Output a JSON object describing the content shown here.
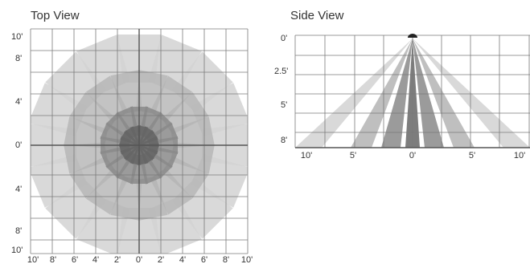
{
  "top_view": {
    "title": "Top View",
    "x_tick_labels": [
      "10'",
      "8'",
      "6'",
      "4'",
      "2'",
      "0'",
      "2'",
      "4'",
      "6'",
      "8'",
      "10'"
    ],
    "y_tick_labels": [
      "10'",
      "8'",
      "4'",
      "0'",
      "4'",
      "8'",
      "10'"
    ],
    "sensor_ring_count": 4
  },
  "side_view": {
    "title": "Side View",
    "x_tick_labels": [
      "10'",
      "5'",
      "0'",
      "5'",
      "10'"
    ],
    "y_tick_labels": [
      "0'",
      "2.5'",
      "5'",
      "8'"
    ]
  },
  "colors": {
    "grid": "#7a7a7a",
    "axis": "#555555",
    "zone_light": "#d2d2d2",
    "zone_mid": "#b4b4b4",
    "zone_dark": "#8a8a8a",
    "zone_darkest": "#666666",
    "sensor": "#222222"
  }
}
